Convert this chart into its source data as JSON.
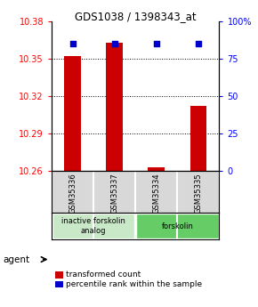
{
  "title": "GDS1038 / 1398343_at",
  "samples": [
    "GSM35336",
    "GSM35337",
    "GSM35334",
    "GSM35335"
  ],
  "red_values": [
    10.352,
    10.363,
    10.263,
    10.312
  ],
  "blue_values": [
    85,
    85,
    85,
    85
  ],
  "ylim_left": [
    10.26,
    10.38
  ],
  "ylim_right": [
    0,
    100
  ],
  "yticks_left": [
    10.26,
    10.29,
    10.32,
    10.35,
    10.38
  ],
  "yticks_right": [
    0,
    25,
    50,
    75,
    100
  ],
  "ytick_labels_right": [
    "0",
    "25",
    "50",
    "75",
    "100%"
  ],
  "groups": [
    {
      "label": "inactive forskolin\nanalog",
      "color": "#c8e8c8",
      "span": [
        0,
        2
      ]
    },
    {
      "label": "forskolin",
      "color": "#66cc66",
      "span": [
        2,
        4
      ]
    }
  ],
  "bar_color": "#cc0000",
  "dot_color": "#0000cc",
  "bar_width": 0.4,
  "background_color": "#ffffff",
  "plot_bg": "#ffffff",
  "legend_red": "transformed count",
  "legend_blue": "percentile rank within the sample",
  "agent_label": "agent"
}
